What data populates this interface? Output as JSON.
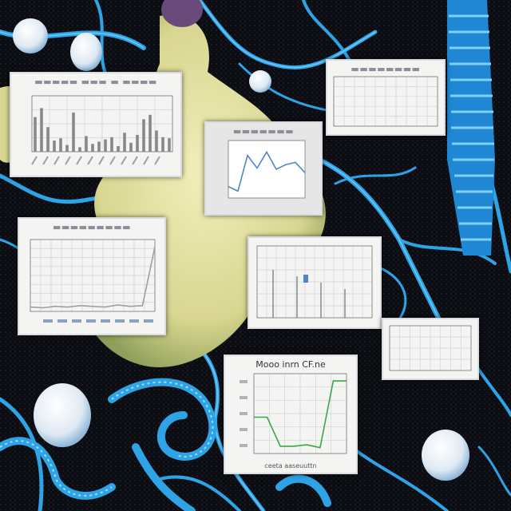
{
  "scene": {
    "background": "#0b0d12",
    "colors": {
      "neuron_blue": "#2ea3e6",
      "neuron_light": "#7fd2ff",
      "tissue": "#e9e6a8",
      "tissue_shadow": "#a9b26a",
      "panel_bg": "#f4f4f2",
      "plot_line_blue": "#4f86c6",
      "plot_line_green": "#3aa64a",
      "bar_gray": "#888888"
    },
    "objects": [
      "neuron-network",
      "tissue-blob",
      "vesicle",
      "coiled-protein",
      "spine-column"
    ]
  },
  "panel_bottom": {
    "title": "Mooo inrn CF.ne",
    "xlabel": "ceeta aaseuuttn"
  },
  "chart_data": [
    {
      "type": "bar",
      "values": [
        62,
        78,
        44,
        20,
        24,
        12,
        70,
        8,
        28,
        14,
        18,
        22,
        26,
        10,
        34,
        16,
        30,
        58,
        66,
        38,
        26,
        24
      ],
      "ylim": [
        0,
        100
      ],
      "grid": true
    },
    {
      "type": "line",
      "x": [
        0,
        1,
        2,
        3,
        4,
        5,
        6,
        7,
        8
      ],
      "values": [
        20,
        12,
        74,
        52,
        80,
        50,
        58,
        62,
        44
      ],
      "ylim": [
        0,
        100
      ]
    },
    {
      "type": "line",
      "x": [
        0,
        1,
        2,
        3,
        4,
        5,
        6,
        7,
        8,
        9,
        10
      ],
      "values": [
        6,
        5,
        7,
        6,
        8,
        7,
        6,
        9,
        7,
        8,
        90
      ],
      "ylim": [
        0,
        100
      ],
      "grid": true
    },
    {
      "type": "line",
      "x": [
        0,
        1,
        2,
        3,
        4,
        5,
        6,
        7
      ],
      "values": [
        50,
        50,
        10,
        10,
        12,
        8,
        100,
        100
      ],
      "ylim": [
        0,
        110
      ],
      "grid": true
    }
  ]
}
